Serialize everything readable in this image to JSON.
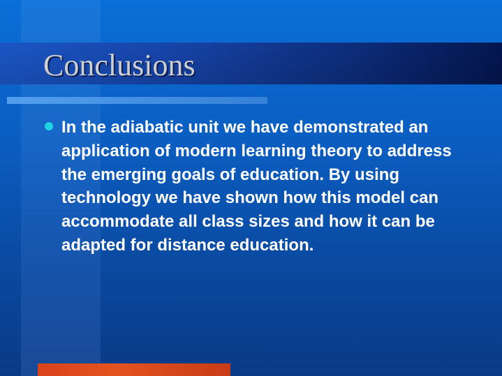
{
  "slide": {
    "title": "Conclusions",
    "bullets": [
      {
        "text": "In the adiabatic unit we have demonstrated an application of modern learning theory to address the emerging goals of education.  By using technology we have shown how this model can accommodate all class sizes and how it can be adapted for distance education."
      }
    ]
  },
  "colors": {
    "background": "#0b5cbf",
    "title_band": "#1644a8",
    "title_text": "#cfcfcf",
    "bullet": "#1fd2e6",
    "body_text": "#ffffff",
    "accent_bar": "#e4521f"
  }
}
